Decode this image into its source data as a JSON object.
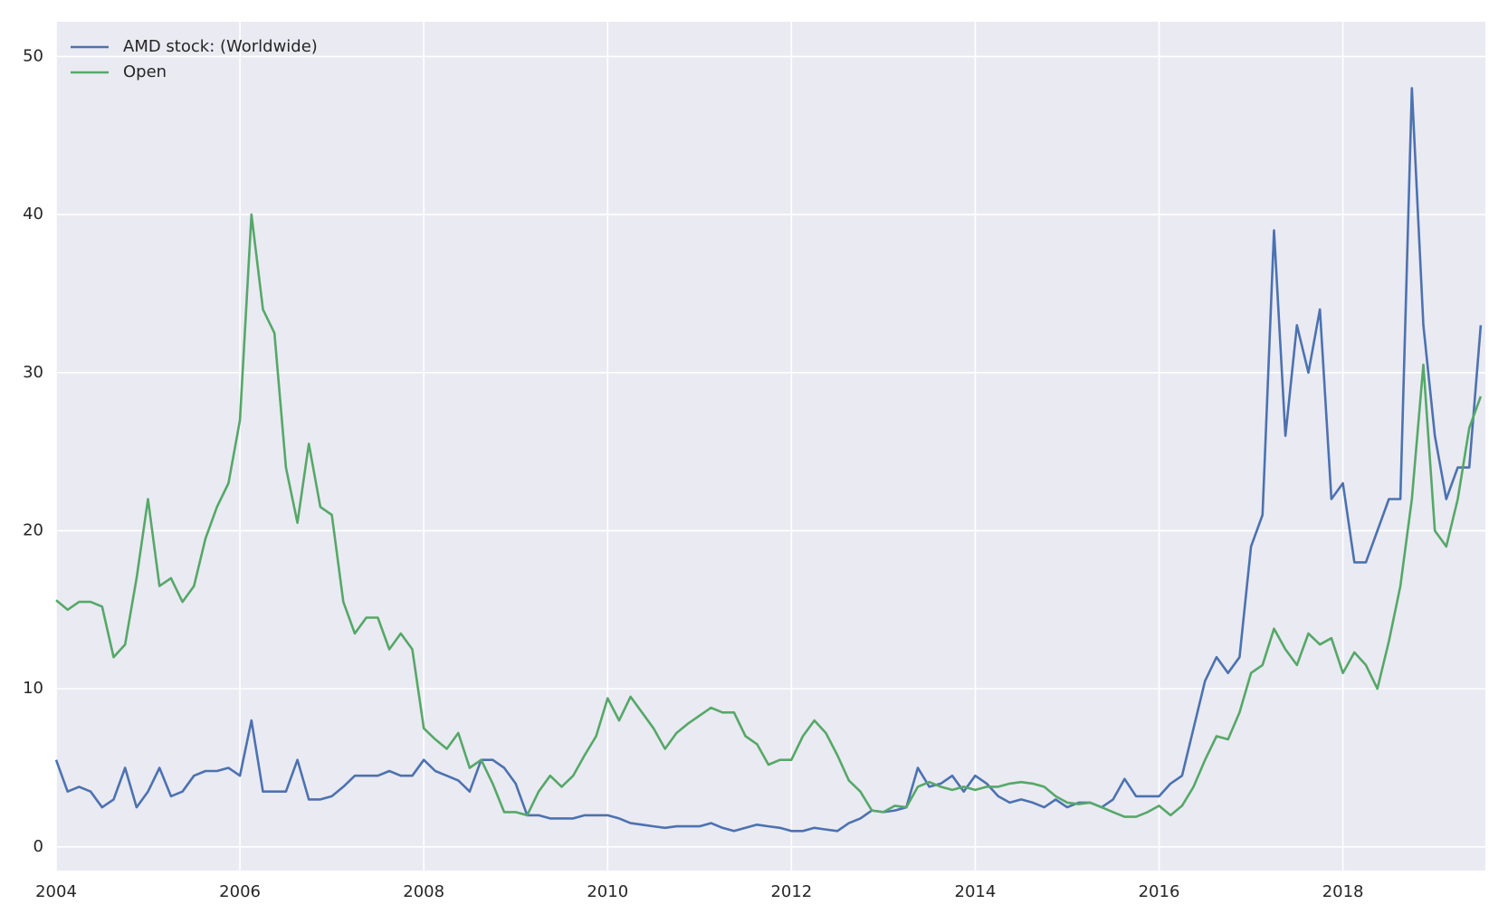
{
  "chart_data": {
    "type": "line",
    "x": [
      2004,
      2004.125,
      2004.25,
      2004.375,
      2004.5,
      2004.625,
      2004.75,
      2004.875,
      2005,
      2005.125,
      2005.25,
      2005.375,
      2005.5,
      2005.625,
      2005.75,
      2005.875,
      2006,
      2006.125,
      2006.25,
      2006.375,
      2006.5,
      2006.625,
      2006.75,
      2006.875,
      2007,
      2007.125,
      2007.25,
      2007.375,
      2007.5,
      2007.625,
      2007.75,
      2007.875,
      2008,
      2008.125,
      2008.25,
      2008.375,
      2008.5,
      2008.625,
      2008.75,
      2008.875,
      2009,
      2009.125,
      2009.25,
      2009.375,
      2009.5,
      2009.625,
      2009.75,
      2009.875,
      2010,
      2010.125,
      2010.25,
      2010.375,
      2010.5,
      2010.625,
      2010.75,
      2010.875,
      2011,
      2011.125,
      2011.25,
      2011.375,
      2011.5,
      2011.625,
      2011.75,
      2011.875,
      2012,
      2012.125,
      2012.25,
      2012.375,
      2012.5,
      2012.625,
      2012.75,
      2012.875,
      2013,
      2013.125,
      2013.25,
      2013.375,
      2013.5,
      2013.625,
      2013.75,
      2013.875,
      2014,
      2014.125,
      2014.25,
      2014.375,
      2014.5,
      2014.625,
      2014.75,
      2014.875,
      2015,
      2015.125,
      2015.25,
      2015.375,
      2015.5,
      2015.625,
      2015.75,
      2015.875,
      2016,
      2016.125,
      2016.25,
      2016.375,
      2016.5,
      2016.625,
      2016.75,
      2016.875,
      2017,
      2017.125,
      2017.25,
      2017.375,
      2017.5,
      2017.625,
      2017.75,
      2017.875,
      2018,
      2018.125,
      2018.25,
      2018.375,
      2018.5,
      2018.625,
      2018.75,
      2018.875,
      2019,
      2019.125,
      2019.25,
      2019.375,
      2019.5
    ],
    "series": [
      {
        "name": "AMD stock: (Worldwide)",
        "color": "#4c72b0",
        "values": [
          5.5,
          3.5,
          3.8,
          3.5,
          2.5,
          3.0,
          5.0,
          2.5,
          3.5,
          5.0,
          3.2,
          3.5,
          4.5,
          4.8,
          4.8,
          5.0,
          4.5,
          8.0,
          3.5,
          3.5,
          3.5,
          5.5,
          3.0,
          3.0,
          3.2,
          3.8,
          4.5,
          4.5,
          4.5,
          4.8,
          4.5,
          4.5,
          5.5,
          4.8,
          4.5,
          4.2,
          3.5,
          5.5,
          5.5,
          5.0,
          4.0,
          2.0,
          2.0,
          1.8,
          1.8,
          1.8,
          2.0,
          2.0,
          2.0,
          1.8,
          1.5,
          1.4,
          1.3,
          1.2,
          1.3,
          1.3,
          1.3,
          1.5,
          1.2,
          1.0,
          1.2,
          1.4,
          1.3,
          1.2,
          1.0,
          1.0,
          1.2,
          1.1,
          1.0,
          1.5,
          1.8,
          2.3,
          2.2,
          2.3,
          2.5,
          5.0,
          3.8,
          4.0,
          4.5,
          3.5,
          4.5,
          4.0,
          3.2,
          2.8,
          3.0,
          2.8,
          2.5,
          3.0,
          2.5,
          2.8,
          2.8,
          2.5,
          3.0,
          4.3,
          3.2,
          3.2,
          3.2,
          4.0,
          4.5,
          7.5,
          10.5,
          12.0,
          11.0,
          12.0,
          19.0,
          21.0,
          39.0,
          26.0,
          33.0,
          30.0,
          34.0,
          22.0,
          23.0,
          18.0,
          18.0,
          20.0,
          22.0,
          22.0,
          48.0,
          33.0,
          26.0,
          22.0,
          24.0,
          24.0,
          33.0
        ]
      },
      {
        "name": "Open",
        "color": "#55a868",
        "values": [
          15.6,
          15.0,
          15.5,
          15.5,
          15.2,
          12.0,
          12.8,
          17.0,
          22.0,
          16.5,
          17.0,
          15.5,
          16.5,
          19.5,
          21.5,
          23.0,
          27.0,
          40.0,
          34.0,
          32.5,
          24.0,
          20.5,
          25.5,
          21.5,
          21.0,
          15.5,
          13.5,
          14.5,
          14.5,
          12.5,
          13.5,
          12.5,
          7.5,
          6.8,
          6.2,
          7.2,
          5.0,
          5.5,
          4.0,
          2.2,
          2.2,
          2.0,
          3.5,
          4.5,
          3.8,
          4.5,
          5.8,
          7.0,
          9.4,
          8.0,
          9.5,
          8.5,
          7.5,
          6.2,
          7.2,
          7.8,
          8.3,
          8.8,
          8.5,
          8.5,
          7.0,
          6.5,
          5.2,
          5.5,
          5.5,
          7.0,
          8.0,
          7.2,
          5.8,
          4.2,
          3.5,
          2.3,
          2.2,
          2.6,
          2.5,
          3.8,
          4.1,
          3.8,
          3.6,
          3.8,
          3.6,
          3.8,
          3.8,
          4.0,
          4.1,
          4.0,
          3.8,
          3.2,
          2.8,
          2.7,
          2.8,
          2.5,
          2.2,
          1.9,
          1.9,
          2.2,
          2.6,
          2.0,
          2.6,
          3.8,
          5.5,
          7.0,
          6.8,
          8.5,
          11.0,
          11.5,
          13.8,
          12.5,
          11.5,
          13.5,
          12.8,
          13.2,
          11.0,
          12.3,
          11.5,
          10.0,
          13.0,
          16.5,
          22.0,
          30.5,
          20.0,
          19.0,
          22.0,
          26.5,
          28.5
        ]
      }
    ],
    "xlim": [
      2004,
      2019.55
    ],
    "xticks": [
      2004,
      2006,
      2008,
      2010,
      2012,
      2014,
      2016,
      2018
    ],
    "ylim": [
      -1.5,
      52.2
    ],
    "yticks": [
      0,
      10,
      20,
      30,
      40,
      50
    ],
    "grid": true,
    "legend": "upper left"
  }
}
